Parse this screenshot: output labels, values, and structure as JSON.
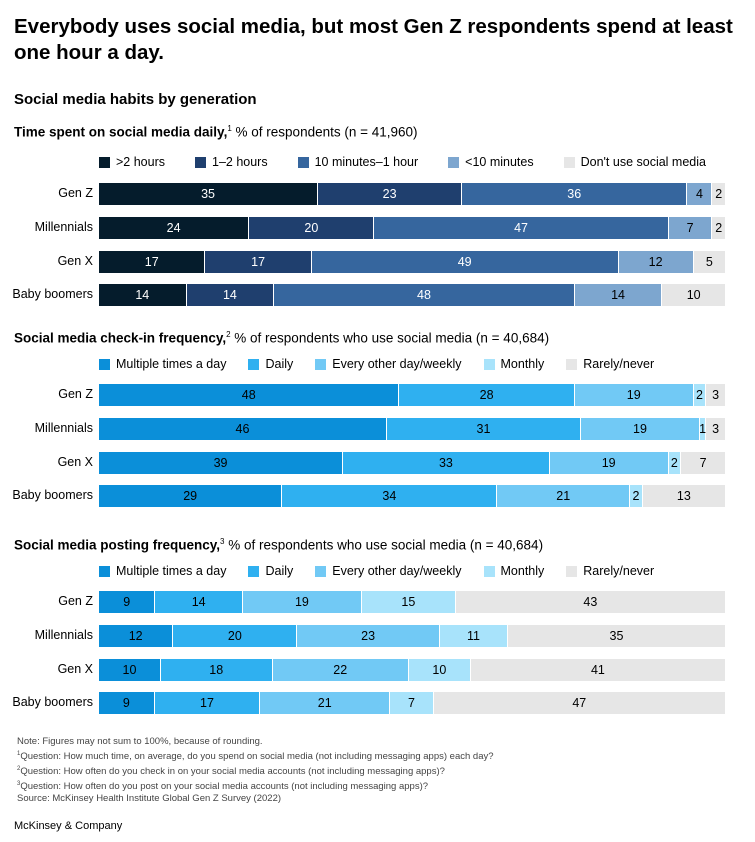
{
  "title": "Everybody uses social media, but most Gen Z respondents spend at least one hour a day.",
  "subtitle": "Social media habits by generation",
  "colors": {
    "c1": "#051c2c",
    "c2": "#1f3f6e",
    "c3": "#36669e",
    "c4": "#7da6cf",
    "c5": "#e6e6e6",
    "b1": "#0b8fd9",
    "b2": "#2fb0f0",
    "b3": "#71c9f5",
    "b4": "#a8e3fb",
    "b5": "#e6e6e6"
  },
  "chart_data": [
    {
      "type": "bar",
      "stacked": true,
      "orientation": "horizontal",
      "title": "Time spent on social media daily,",
      "footnote_mark": "1",
      "note": " % of respondents (n = 41,960)",
      "categories": [
        "Gen Z",
        "Millennials",
        "Gen X",
        "Baby boomers"
      ],
      "series": [
        {
          "name": ">2 hours",
          "color": "#051c2c",
          "text": "#ffffff",
          "values": [
            35,
            24,
            17,
            14
          ]
        },
        {
          "name": "1–2 hours",
          "color": "#1f3f6e",
          "text": "#ffffff",
          "values": [
            23,
            20,
            17,
            14
          ]
        },
        {
          "name": "10 minutes–1 hour",
          "color": "#36669e",
          "text": "#ffffff",
          "values": [
            36,
            47,
            49,
            48
          ]
        },
        {
          "name": "<10 minutes",
          "color": "#7da6cf",
          "text": "#000000",
          "values": [
            4,
            7,
            12,
            14
          ]
        },
        {
          "name": "Don't use social media",
          "color": "#e6e6e6",
          "text": "#000000",
          "values": [
            2,
            2,
            5,
            10
          ]
        }
      ]
    },
    {
      "type": "bar",
      "stacked": true,
      "orientation": "horizontal",
      "title": "Social media check-in frequency,",
      "footnote_mark": "2",
      "note": " % of respondents who use social media (n = 40,684)",
      "categories": [
        "Gen Z",
        "Millennials",
        "Gen X",
        "Baby boomers"
      ],
      "series": [
        {
          "name": "Multiple times a day",
          "color": "#0b8fd9",
          "text": "#000000",
          "values": [
            48,
            46,
            39,
            29
          ]
        },
        {
          "name": "Daily",
          "color": "#2fb0f0",
          "text": "#000000",
          "values": [
            28,
            31,
            33,
            34
          ]
        },
        {
          "name": "Every other day/weekly",
          "color": "#71c9f5",
          "text": "#000000",
          "values": [
            19,
            19,
            19,
            21
          ]
        },
        {
          "name": "Monthly",
          "color": "#a8e3fb",
          "text": "#000000",
          "values": [
            2,
            1,
            2,
            2
          ]
        },
        {
          "name": "Rarely/never",
          "color": "#e6e6e6",
          "text": "#000000",
          "values": [
            3,
            3,
            7,
            13
          ]
        }
      ]
    },
    {
      "type": "bar",
      "stacked": true,
      "orientation": "horizontal",
      "title": "Social media posting frequency,",
      "footnote_mark": "3",
      "note": " % of respondents who use social media (n = 40,684)",
      "categories": [
        "Gen Z",
        "Millennials",
        "Gen X",
        "Baby boomers"
      ],
      "series": [
        {
          "name": "Multiple times a day",
          "color": "#0b8fd9",
          "text": "#000000",
          "values": [
            9,
            12,
            10,
            9
          ]
        },
        {
          "name": "Daily",
          "color": "#2fb0f0",
          "text": "#000000",
          "values": [
            14,
            20,
            18,
            17
          ]
        },
        {
          "name": "Every other day/weekly",
          "color": "#71c9f5",
          "text": "#000000",
          "values": [
            19,
            23,
            22,
            21
          ]
        },
        {
          "name": "Monthly",
          "color": "#a8e3fb",
          "text": "#000000",
          "values": [
            15,
            11,
            10,
            7
          ]
        },
        {
          "name": "Rarely/never",
          "color": "#e6e6e6",
          "text": "#000000",
          "values": [
            43,
            35,
            41,
            47
          ]
        }
      ]
    }
  ],
  "footnotes": {
    "note": "Note: Figures may not sum to 100%, because of rounding.",
    "q1_mark": "1",
    "q1": "Question: How much time, on average, do you spend on social media (not including messaging apps) each day?",
    "q2_mark": "2",
    "q2": "Question: How often do you check in on your social media accounts (not including messaging apps)?",
    "q3_mark": "3",
    "q3": "Question: How often do you post on your social media accounts (not including messaging apps)?",
    "source": "Source: McKinsey Health Institute Global Gen Z Survey (2022)"
  },
  "brand": "McKinsey & Company"
}
